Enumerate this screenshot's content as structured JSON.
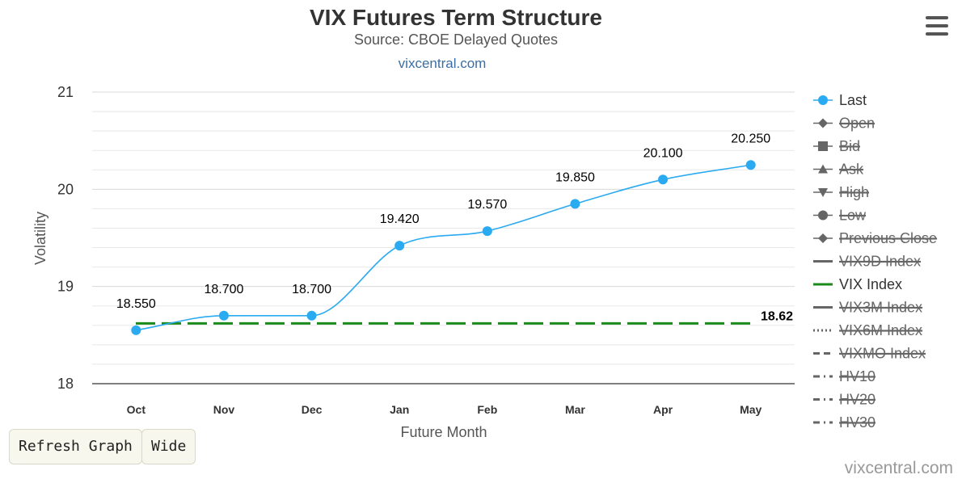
{
  "header": {
    "title": "VIX Futures Term Structure",
    "subtitle": "Source: CBOE Delayed Quotes",
    "link_text": "vixcentral.com"
  },
  "buttons": {
    "refresh_label": "Refresh Graph",
    "wide_label": "Wide"
  },
  "footer": {
    "credit": "vixcentral.com"
  },
  "chart_data": {
    "type": "line",
    "title": "VIX Futures Term Structure",
    "subtitle": "Source: CBOE Delayed Quotes",
    "xlabel": "Future Month",
    "ylabel": "Volatility",
    "categories": [
      "Oct",
      "Nov",
      "Dec",
      "Jan",
      "Feb",
      "Mar",
      "Apr",
      "May"
    ],
    "ylim": [
      18,
      21
    ],
    "yticks": [
      "18",
      "19",
      "20",
      "21"
    ],
    "grid": true,
    "legend_position": "right",
    "series": [
      {
        "name": "Last",
        "color": "#2aaaf0",
        "values": [
          18.55,
          18.7,
          18.7,
          19.42,
          19.57,
          19.85,
          20.1,
          20.25
        ],
        "data_labels": [
          "18.550",
          "18.700",
          "18.700",
          "19.420",
          "19.570",
          "19.850",
          "20.100",
          "20.250"
        ]
      },
      {
        "name": "VIX Index",
        "color": "#1a8a1a",
        "value": 18.62,
        "end_label": "18.62",
        "dashed": true
      }
    ],
    "legend": [
      {
        "name": "Last",
        "symbol": "circle",
        "enabled": true,
        "color": "#2aaaf0"
      },
      {
        "name": "Open",
        "symbol": "diamond",
        "enabled": false
      },
      {
        "name": "Bid",
        "symbol": "square",
        "enabled": false
      },
      {
        "name": "Ask",
        "symbol": "triangle",
        "enabled": false
      },
      {
        "name": "High",
        "symbol": "triangle-down",
        "enabled": false
      },
      {
        "name": "Low",
        "symbol": "circle",
        "enabled": false
      },
      {
        "name": "Previous Close",
        "symbol": "diamond",
        "enabled": false
      },
      {
        "name": "VIX9D Index",
        "symbol": "line",
        "enabled": false
      },
      {
        "name": "VIX Index",
        "symbol": "line",
        "enabled": true,
        "color": "#1a8a1a"
      },
      {
        "name": "VIX3M Index",
        "symbol": "line",
        "enabled": false
      },
      {
        "name": "VIX6M Index",
        "symbol": "dotted",
        "enabled": false
      },
      {
        "name": "VIXMO Index",
        "symbol": "dashed",
        "enabled": false
      },
      {
        "name": "HV10",
        "symbol": "dashdot",
        "enabled": false
      },
      {
        "name": "HV20",
        "symbol": "dashdot",
        "enabled": false
      },
      {
        "name": "HV30",
        "symbol": "dashdot",
        "enabled": false
      }
    ]
  }
}
